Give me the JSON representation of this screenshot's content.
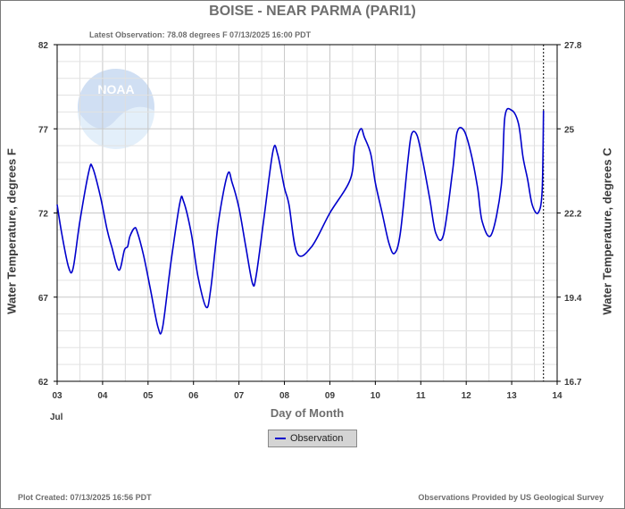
{
  "title": "BOISE - NEAR PARMA  (PARI1)",
  "latest_observation": "Latest Observation: 78.08 degrees F 07/13/2025 16:00 PDT",
  "plot_created": "Plot Created: 07/13/2025 16:56 PDT",
  "provided_by": "Observations Provided by US Geological Survey",
  "logo_text": "NOAA",
  "chart_data": {
    "type": "line",
    "title": "BOISE - NEAR PARMA  (PARI1)",
    "xlabel": "Day of Month",
    "x_month_label": "Jul",
    "ylabel": "Water Temperature, degrees F",
    "ylabel_right": "Water Temperature, degrees C",
    "xlim": [
      3,
      14
    ],
    "ylim": [
      62,
      82
    ],
    "x_ticks": [
      "03",
      "04",
      "05",
      "06",
      "07",
      "08",
      "09",
      "10",
      "11",
      "12",
      "13",
      "14"
    ],
    "y_ticks_left": [
      "62",
      "67",
      "72",
      "77",
      "82"
    ],
    "y_ticks_left_values": [
      62,
      67,
      72,
      77,
      82
    ],
    "y_ticks_right": [
      "16.7",
      "19.4",
      "22.2",
      "25",
      "27.8"
    ],
    "grid": true,
    "legend": "bottom-center",
    "legend_label": "Observation",
    "line_color": "#0000cc",
    "latest_marker_x": 13.7,
    "series": [
      {
        "x": [
          3.0,
          3.1,
          3.25,
          3.35,
          3.5,
          3.7,
          3.78,
          3.95,
          4.1,
          4.2,
          4.36,
          4.48,
          4.55,
          4.6,
          4.7,
          4.76,
          4.9,
          5.05,
          5.22,
          5.32,
          5.5,
          5.7,
          5.78,
          5.95,
          6.1,
          6.28,
          6.38,
          6.55,
          6.75,
          6.85,
          7.0,
          7.15,
          7.3,
          7.38,
          7.55,
          7.75,
          7.85,
          8.0,
          8.1,
          8.28,
          8.6,
          9.0,
          9.45,
          9.55,
          9.68,
          9.76,
          9.9,
          10.0,
          10.15,
          10.3,
          10.42,
          10.55,
          10.72,
          10.8,
          10.92,
          11.05,
          11.2,
          11.33,
          11.5,
          11.7,
          11.8,
          11.95,
          12.1,
          12.25,
          12.35,
          12.55,
          12.77,
          12.85,
          13.0,
          13.15,
          13.25,
          13.35,
          13.45,
          13.58,
          13.67,
          13.7
        ],
        "y": [
          72.5,
          70.8,
          68.8,
          68.7,
          71.5,
          74.5,
          74.7,
          73.0,
          71.0,
          70.0,
          68.6,
          69.8,
          70.0,
          70.6,
          71.1,
          70.9,
          69.5,
          67.5,
          65.2,
          65.2,
          69.0,
          72.6,
          72.7,
          70.8,
          68.2,
          66.4,
          67.5,
          71.5,
          74.3,
          73.8,
          72.3,
          70.0,
          67.8,
          68.3,
          71.7,
          75.7,
          75.5,
          73.5,
          72.5,
          69.6,
          70.0,
          72.0,
          74.0,
          76.0,
          77.0,
          76.5,
          75.5,
          73.8,
          72.0,
          70.2,
          69.6,
          70.8,
          75.2,
          76.7,
          76.6,
          75.0,
          72.8,
          70.8,
          70.7,
          74.5,
          76.8,
          76.9,
          75.6,
          73.5,
          71.5,
          70.7,
          73.6,
          77.7,
          78.1,
          77.3,
          75.3,
          74.0,
          72.5,
          72.0,
          73.3,
          78.08
        ]
      }
    ]
  }
}
